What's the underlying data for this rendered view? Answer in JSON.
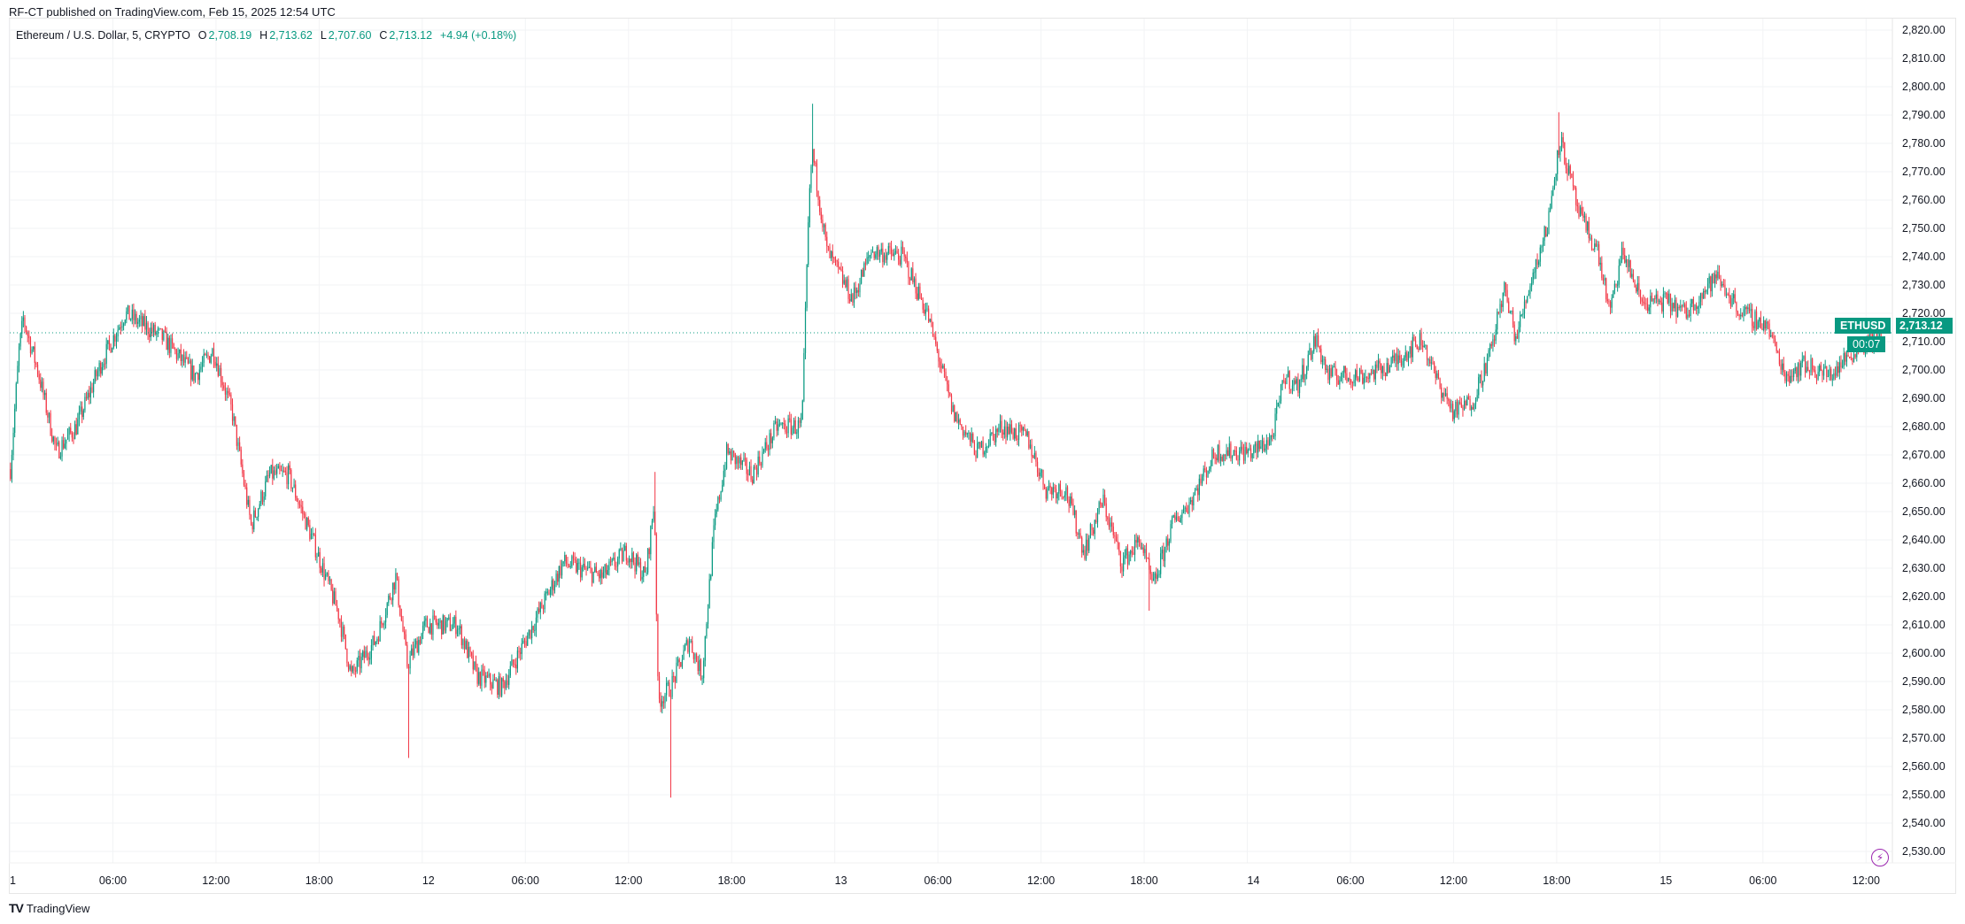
{
  "header": {
    "published": "RF-CT published on TradingView.com, Feb 15, 2025 12:54 UTC"
  },
  "legend": {
    "symbol": "Ethereum / U.S. Dollar, 5, CRYPTO",
    "o_label": "O",
    "o": "2,708.19",
    "h_label": "H",
    "h": "2,713.62",
    "l_label": "L",
    "l": "2,707.60",
    "c_label": "C",
    "c": "2,713.12",
    "change": "+4.94 (+0.18%)"
  },
  "price_tag": {
    "symbol": "ETHUSD",
    "price": "2,713.12",
    "countdown": "00:07"
  },
  "branding": {
    "logo_text": "TradingView",
    "logo_mark": "TV"
  },
  "colors": {
    "up": "#089981",
    "down": "#f23645",
    "grid": "#f2f3f5",
    "accent": "#9c27b0"
  },
  "icons": {
    "alert": "lightning-icon"
  },
  "chart_data": {
    "type": "candlestick",
    "interval": "5",
    "start": "2025-02-11 00:00",
    "end": "2025-02-15 12:50",
    "ylim": [
      2525,
      2825
    ],
    "y_ticks": [
      "2,820.00",
      "2,810.00",
      "2,800.00",
      "2,790.00",
      "2,780.00",
      "2,770.00",
      "2,760.00",
      "2,750.00",
      "2,740.00",
      "2,730.00",
      "2,720.00",
      "2,710.00",
      "2,700.00",
      "2,690.00",
      "2,680.00",
      "2,670.00",
      "2,660.00",
      "2,650.00",
      "2,640.00",
      "2,630.00",
      "2,620.00",
      "2,610.00",
      "2,600.00",
      "2,590.00",
      "2,580.00",
      "2,570.00",
      "2,560.00",
      "2,550.00",
      "2,540.00",
      "2,530.00"
    ],
    "x_ticks": [
      {
        "t": "2025-02-11 00:00",
        "label": "1"
      },
      {
        "t": "2025-02-11 06:00",
        "label": "06:00"
      },
      {
        "t": "2025-02-11 12:00",
        "label": "12:00"
      },
      {
        "t": "2025-02-11 18:00",
        "label": "18:00"
      },
      {
        "t": "2025-02-12 00:00",
        "label": "12"
      },
      {
        "t": "2025-02-12 06:00",
        "label": "06:00"
      },
      {
        "t": "2025-02-12 12:00",
        "label": "12:00"
      },
      {
        "t": "2025-02-12 18:00",
        "label": "18:00"
      },
      {
        "t": "2025-02-13 00:00",
        "label": "13"
      },
      {
        "t": "2025-02-13 06:00",
        "label": "06:00"
      },
      {
        "t": "2025-02-13 12:00",
        "label": "12:00"
      },
      {
        "t": "2025-02-13 18:00",
        "label": "18:00"
      },
      {
        "t": "2025-02-14 00:00",
        "label": "14"
      },
      {
        "t": "2025-02-14 06:00",
        "label": "06:00"
      },
      {
        "t": "2025-02-14 12:00",
        "label": "12:00"
      },
      {
        "t": "2025-02-14 18:00",
        "label": "18:00"
      },
      {
        "t": "2025-02-15 00:00",
        "label": "15"
      },
      {
        "t": "2025-02-15 06:00",
        "label": "06:00"
      },
      {
        "t": "2025-02-15 12:00",
        "label": "12:00"
      }
    ],
    "last_price": 2713.12,
    "approx_close_path": [
      [
        "2025-02-11 00:00",
        2665
      ],
      [
        "2025-02-11 00:30",
        2707
      ],
      [
        "2025-02-11 00:45",
        2718
      ],
      [
        "2025-02-11 01:35",
        2700
      ],
      [
        "2025-02-11 02:40",
        2671
      ],
      [
        "2025-02-11 03:50",
        2680
      ],
      [
        "2025-02-11 05:15",
        2702
      ],
      [
        "2025-02-11 06:40",
        2720
      ],
      [
        "2025-02-11 08:55",
        2711
      ],
      [
        "2025-02-11 10:43",
        2698
      ],
      [
        "2025-02-11 11:48",
        2707
      ],
      [
        "2025-02-11 12:54",
        2685
      ],
      [
        "2025-02-11 14:00",
        2645
      ],
      [
        "2025-02-11 15:05",
        2663
      ],
      [
        "2025-02-11 16:10",
        2663
      ],
      [
        "2025-02-11 17:35",
        2640
      ],
      [
        "2025-02-11 19:05",
        2614
      ],
      [
        "2025-02-11 19:50",
        2592
      ],
      [
        "2025-02-11 21:17",
        2605
      ],
      [
        "2025-02-11 22:25",
        2627
      ],
      [
        "2025-02-11 23:05",
        2596
      ],
      [
        "2025-02-12 00:10",
        2610
      ],
      [
        "2025-02-12 02:00",
        2610
      ],
      [
        "2025-02-12 03:07",
        2592
      ],
      [
        "2025-02-12 04:35",
        2588
      ],
      [
        "2025-02-12 06:00",
        2605
      ],
      [
        "2025-02-12 08:10",
        2632
      ],
      [
        "2025-02-12 10:25",
        2627
      ],
      [
        "2025-02-12 11:51",
        2636
      ],
      [
        "2025-02-12 12:57",
        2627
      ],
      [
        "2025-02-12 13:28",
        2654
      ],
      [
        "2025-02-12 13:41",
        2583
      ],
      [
        "2025-02-12 14:25",
        2588
      ],
      [
        "2025-02-12 15:30",
        2605
      ],
      [
        "2025-02-12 16:14",
        2592
      ],
      [
        "2025-02-12 16:57",
        2645
      ],
      [
        "2025-02-12 17:41",
        2671
      ],
      [
        "2025-02-12 19:08",
        2663
      ],
      [
        "2025-02-12 20:36",
        2680
      ],
      [
        "2025-02-12 22:03",
        2680
      ],
      [
        "2025-02-12 22:25",
        2751
      ],
      [
        "2025-02-12 22:38",
        2778
      ],
      [
        "2025-02-12 23:30",
        2742
      ],
      [
        "2025-02-13 01:00",
        2725
      ],
      [
        "2025-02-13 02:05",
        2742
      ],
      [
        "2025-02-13 03:55",
        2740
      ],
      [
        "2025-02-13 05:20",
        2720
      ],
      [
        "2025-02-13 06:50",
        2685
      ],
      [
        "2025-02-13 08:15",
        2671
      ],
      [
        "2025-02-13 09:40",
        2680
      ],
      [
        "2025-02-13 11:10",
        2676
      ],
      [
        "2025-02-13 12:15",
        2658
      ],
      [
        "2025-02-13 13:22",
        2658
      ],
      [
        "2025-02-13 14:28",
        2636
      ],
      [
        "2025-02-13 15:33",
        2654
      ],
      [
        "2025-02-13 16:39",
        2632
      ],
      [
        "2025-02-13 17:45",
        2640
      ],
      [
        "2025-02-13 18:28",
        2623
      ],
      [
        "2025-02-13 19:34",
        2645
      ],
      [
        "2025-02-13 20:40",
        2654
      ],
      [
        "2025-02-13 22:07",
        2671
      ],
      [
        "2025-02-14 00:18",
        2671
      ],
      [
        "2025-02-14 01:24",
        2676
      ],
      [
        "2025-02-14 02:08",
        2698
      ],
      [
        "2025-02-14 02:52",
        2694
      ],
      [
        "2025-02-14 03:57",
        2711
      ],
      [
        "2025-02-14 04:40",
        2698
      ],
      [
        "2025-02-14 06:51",
        2698
      ],
      [
        "2025-02-14 08:19",
        2702
      ],
      [
        "2025-02-14 10:08",
        2711
      ],
      [
        "2025-02-14 10:52",
        2698
      ],
      [
        "2025-02-14 11:58",
        2685
      ],
      [
        "2025-02-14 13:03",
        2689
      ],
      [
        "2025-02-14 14:09",
        2707
      ],
      [
        "2025-02-14 14:53",
        2729
      ],
      [
        "2025-02-14 15:36",
        2711
      ],
      [
        "2025-02-14 16:20",
        2729
      ],
      [
        "2025-02-14 17:25",
        2751
      ],
      [
        "2025-02-14 18:09",
        2782
      ],
      [
        "2025-02-14 19:15",
        2755
      ],
      [
        "2025-02-14 20:20",
        2742
      ],
      [
        "2025-02-14 21:04",
        2720
      ],
      [
        "2025-02-14 21:48",
        2742
      ],
      [
        "2025-02-14 22:54",
        2724
      ],
      [
        "2025-02-15 00:21",
        2724
      ],
      [
        "2025-02-15 01:27",
        2720
      ],
      [
        "2025-02-15 03:16",
        2733
      ],
      [
        "2025-02-15 04:43",
        2720
      ],
      [
        "2025-02-15 06:11",
        2716
      ],
      [
        "2025-02-15 07:16",
        2698
      ],
      [
        "2025-02-15 08:22",
        2702
      ],
      [
        "2025-02-15 09:50",
        2698
      ],
      [
        "2025-02-15 11:17",
        2707
      ],
      [
        "2025-02-15 12:50",
        2713
      ]
    ],
    "wick_extremes": [
      [
        "2025-02-11 23:10",
        2563
      ],
      [
        "2025-02-12 14:25",
        2549
      ],
      [
        "2025-02-12 13:30",
        2664
      ],
      [
        "2025-02-12 22:40",
        2794
      ],
      [
        "2025-02-14 18:05",
        2791
      ],
      [
        "2025-02-13 18:15",
        2615
      ]
    ]
  }
}
